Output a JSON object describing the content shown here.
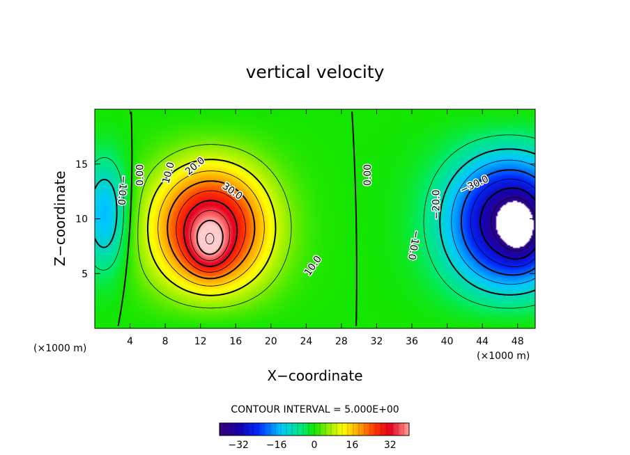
{
  "chart_data": {
    "type": "heatmap",
    "title": "vertical velocity",
    "xlabel": "X−coordinate",
    "ylabel": "Z−coordinate",
    "x_unit": "(×1000 m)",
    "z_unit": "(×1000 m)",
    "xlim": [
      0,
      50
    ],
    "ylim": [
      0,
      20
    ],
    "x_ticks": [
      4,
      8,
      12,
      16,
      20,
      24,
      28,
      32,
      36,
      40,
      44,
      48
    ],
    "y_ticks": [
      5,
      10,
      15
    ],
    "contour_interval_text": "CONTOUR INTERVAL = 5.000E+00",
    "contour_interval": 5,
    "colorbar": {
      "range": [
        -40,
        40
      ],
      "ticks": [
        "−32",
        "−16",
        "0",
        "16",
        "32"
      ],
      "tick_values": [
        -32,
        -16,
        0,
        16,
        32
      ]
    },
    "contour_labels": [
      {
        "text": "0.00",
        "x": 5.2,
        "z": 14.0,
        "rotate": -90
      },
      {
        "text": "10.0",
        "x": 8.4,
        "z": 14.2,
        "rotate": -75
      },
      {
        "text": "20.0",
        "x": 11.4,
        "z": 14.8,
        "rotate": -40
      },
      {
        "text": "30.0",
        "x": 15.6,
        "z": 12.5,
        "rotate": 35
      },
      {
        "text": "10.0",
        "x": 24.8,
        "z": 5.7,
        "rotate": -55
      },
      {
        "text": "0.00",
        "x": 31.0,
        "z": 14.0,
        "rotate": -90
      },
      {
        "text": "−10.0",
        "x": 3.1,
        "z": 12.6,
        "rotate": 95
      },
      {
        "text": "−10.0",
        "x": 36.2,
        "z": 7.6,
        "rotate": 100
      },
      {
        "text": "−20.0",
        "x": 38.8,
        "z": 11.3,
        "rotate": -90
      },
      {
        "text": "−30.0",
        "x": 43.1,
        "z": 13.1,
        "rotate": -25
      }
    ]
  }
}
